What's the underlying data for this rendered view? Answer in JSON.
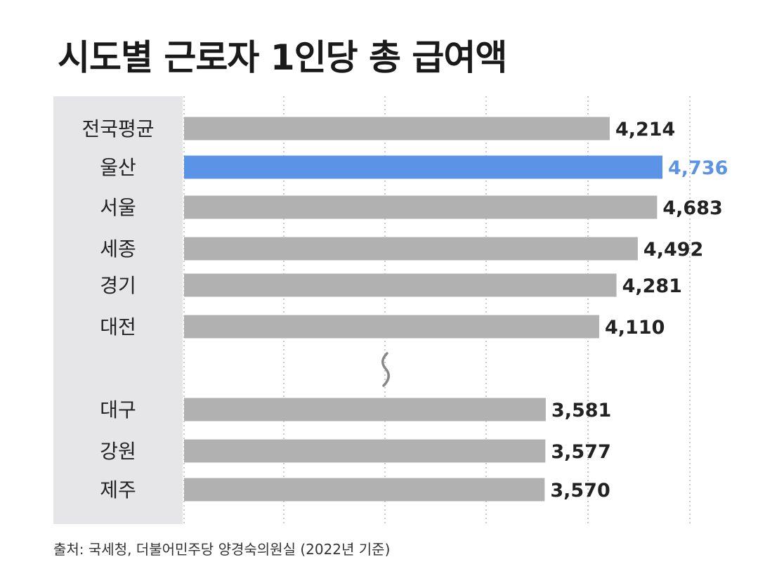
{
  "title": "시도별 근로자 1인당 총 급여액",
  "source": "출처: 국세청, 더불어민주당 양경숙의원실 (2022년 기준)",
  "colors": {
    "bar": "#b1b1b1",
    "highlight": "#5b94e6",
    "label_panel": "#e6e6e8",
    "text": "#222222",
    "highlight_text": "#5b94e6"
  },
  "chart_data": {
    "type": "bar",
    "orientation": "horizontal",
    "categories": [
      "전국평균",
      "울산",
      "서울",
      "세종",
      "경기",
      "대전",
      "대구",
      "강원",
      "제주"
    ],
    "values": [
      4214,
      4736,
      4683,
      4492,
      4281,
      4110,
      3581,
      3577,
      3570
    ],
    "value_labels": [
      "4,214",
      "4,736",
      "4,683",
      "4,492",
      "4,281",
      "4,110",
      "3,581",
      "3,577",
      "3,570"
    ],
    "highlight_index": 1,
    "axis_break_after_index": 5,
    "title": "시도별 근로자 1인당 총 급여액",
    "grid": true,
    "xlabel": "",
    "ylabel": ""
  }
}
